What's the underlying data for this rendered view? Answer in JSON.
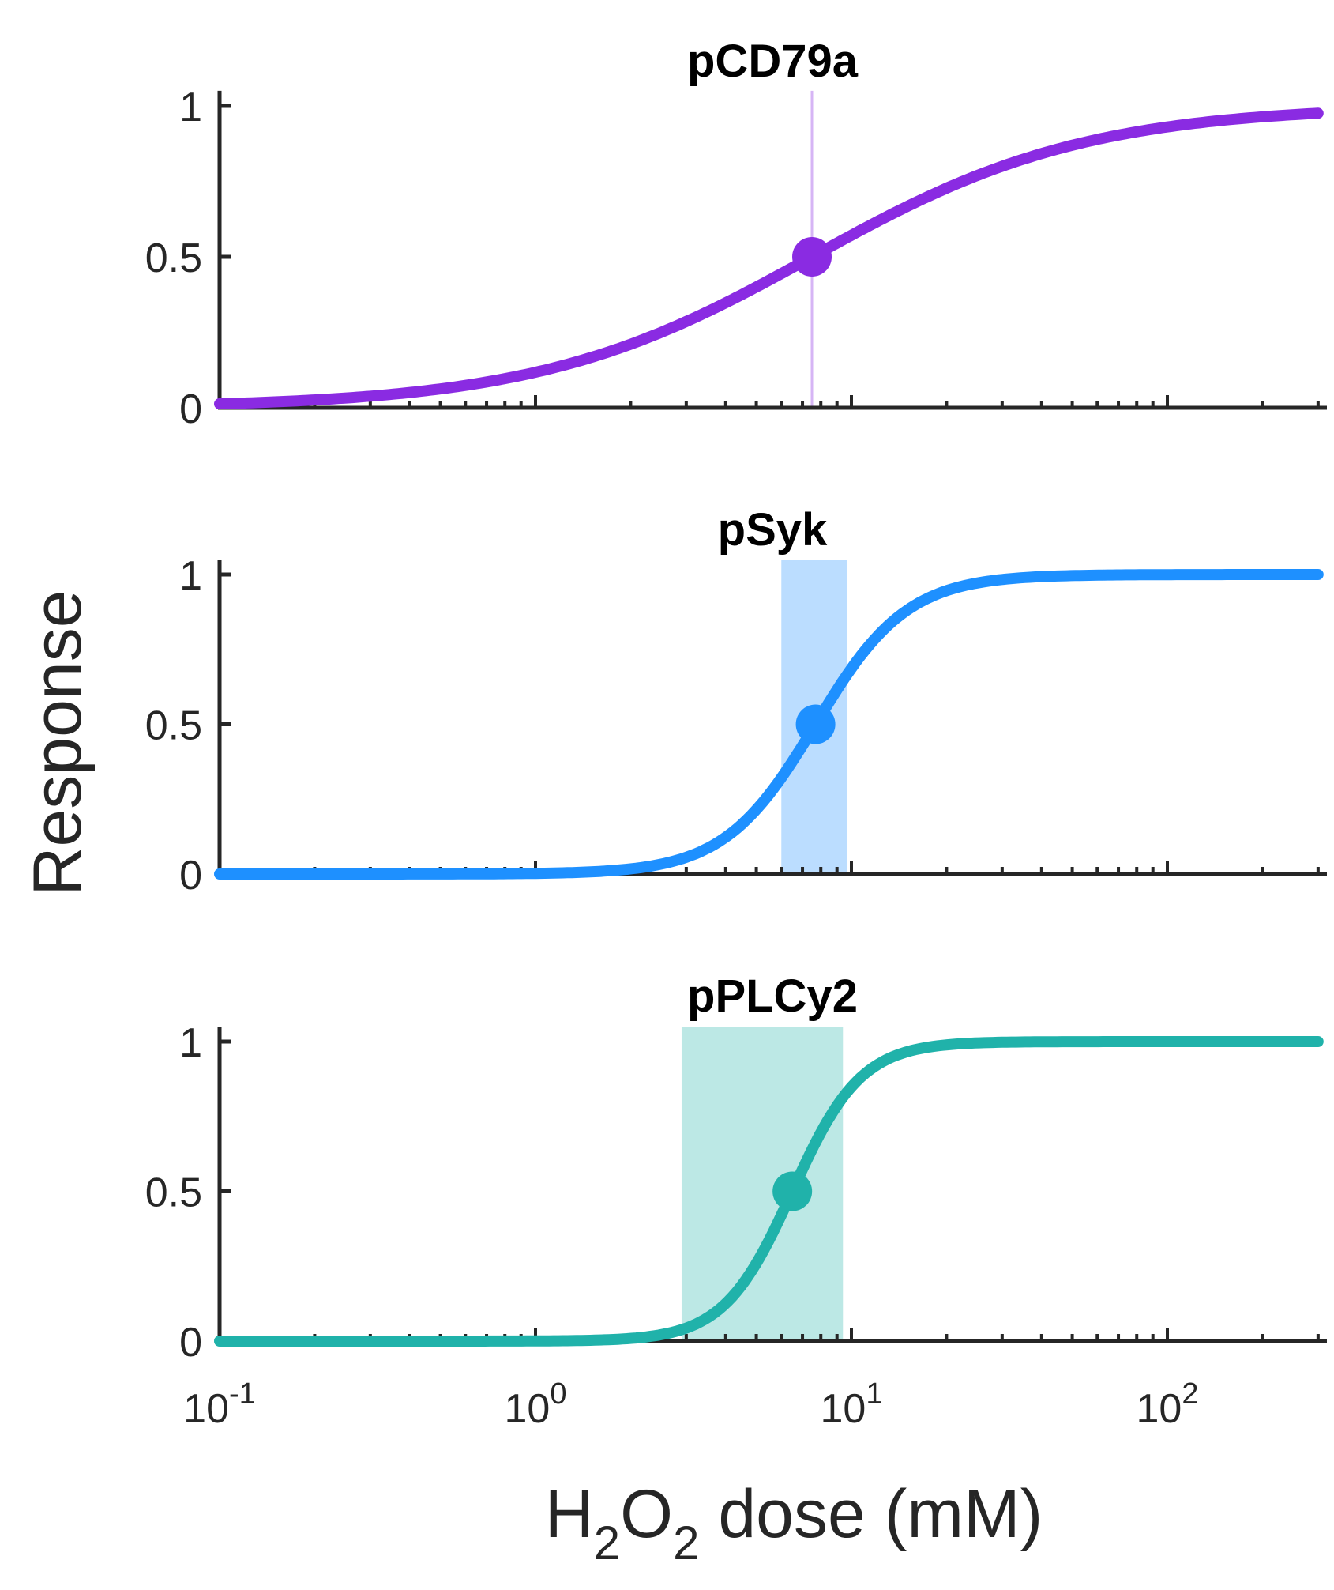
{
  "figure": {
    "ylabel": "Response",
    "xlabel_parts": {
      "h": "H",
      "sub1": "2",
      "o": "O",
      "sub2": "2",
      "rest": " dose (mM)"
    },
    "x_tick_labels": [
      {
        "base": "10",
        "exp": "-1"
      },
      {
        "base": "10",
        "exp": "0"
      },
      {
        "base": "10",
        "exp": "1"
      },
      {
        "base": "10",
        "exp": "2"
      }
    ],
    "y_tick_labels": [
      "0",
      "0.5",
      "1"
    ]
  },
  "chart_data": [
    {
      "type": "line",
      "title": "pCD79a",
      "x_scale": "log",
      "xlim": [
        0.1,
        300
      ],
      "ylim": [
        0,
        1.05
      ],
      "color": "#8A2BE2",
      "ec50": 7.5,
      "hill": 1.0,
      "ec50_point": {
        "x": 7.5,
        "y": 0.5
      },
      "interval": {
        "x": [
          7.4,
          7.6
        ]
      },
      "series": [
        {
          "x": [
            0.1,
            0.3,
            1,
            2,
            3,
            5,
            7.5,
            10,
            20,
            30,
            50,
            100,
            200,
            300
          ],
          "y": [
            0.013,
            0.038,
            0.118,
            0.211,
            0.286,
            0.4,
            0.5,
            0.571,
            0.727,
            0.8,
            0.87,
            0.93,
            0.964,
            0.976
          ]
        }
      ]
    },
    {
      "type": "line",
      "title": "pSyk",
      "x_scale": "log",
      "xlim": [
        0.1,
        300
      ],
      "ylim": [
        0,
        1.05
      ],
      "color": "#1E90FF",
      "ec50": 7.7,
      "hill": 3.0,
      "ec50_point": {
        "x": 7.7,
        "y": 0.5
      },
      "interval": {
        "x": [
          6.0,
          9.7
        ]
      },
      "series": [
        {
          "x": [
            0.1,
            1,
            2,
            3,
            4,
            5,
            6,
            7.7,
            9,
            10,
            12,
            15,
            20,
            30,
            50,
            100,
            300
          ],
          "y": [
            0.0,
            0.002,
            0.017,
            0.055,
            0.119,
            0.215,
            0.321,
            0.5,
            0.615,
            0.686,
            0.79,
            0.882,
            0.947,
            0.983,
            0.996,
            0.999,
            1.0
          ]
        }
      ]
    },
    {
      "type": "line",
      "title": "pPLCy2",
      "x_scale": "log",
      "xlim": [
        0.1,
        300
      ],
      "ylim": [
        0,
        1.05
      ],
      "color": "#20B2AA",
      "ec50": 6.5,
      "hill": 4.0,
      "ec50_point": {
        "x": 6.5,
        "y": 0.5
      },
      "interval": {
        "x": [
          2.9,
          9.4
        ]
      },
      "series": [
        {
          "x": [
            0.1,
            1,
            2,
            3,
            4,
            5,
            6.5,
            8,
            10,
            12,
            15,
            20,
            30,
            50,
            100,
            300
          ],
          "y": [
            0.0,
            0.001,
            0.009,
            0.043,
            0.125,
            0.259,
            0.5,
            0.697,
            0.849,
            0.921,
            0.966,
            0.989,
            0.998,
            1.0,
            1.0,
            1.0
          ]
        }
      ]
    }
  ]
}
